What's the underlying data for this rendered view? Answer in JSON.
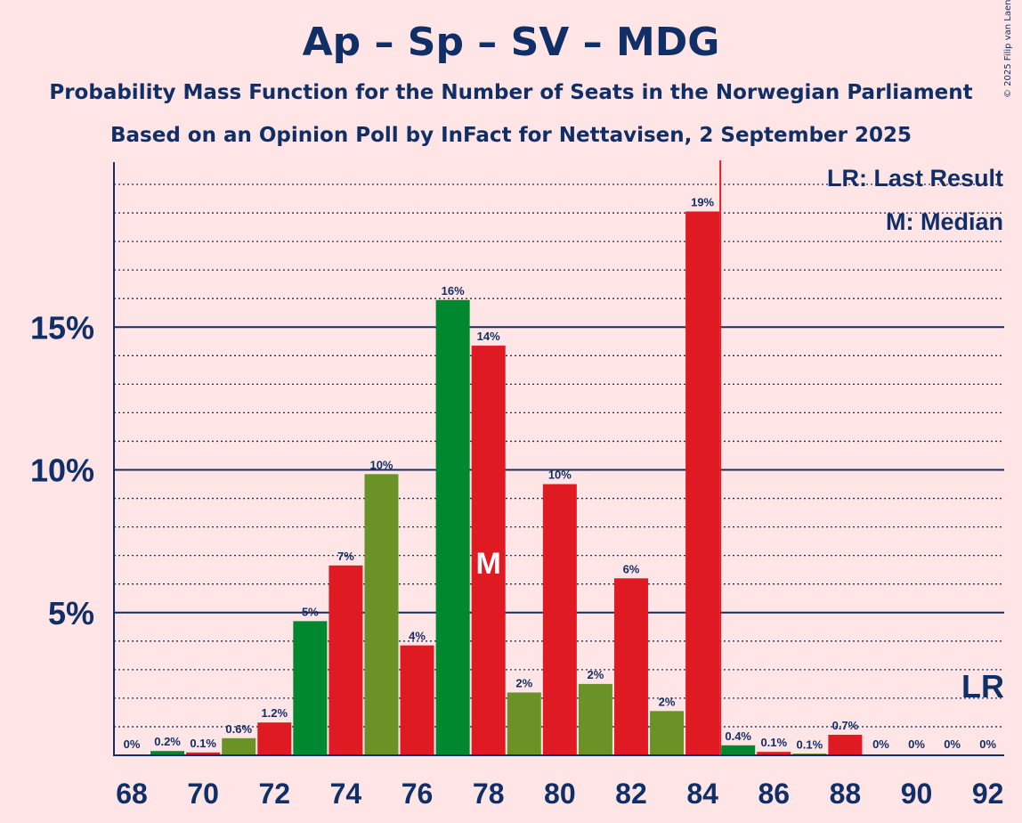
{
  "title": "Ap – Sp – SV – MDG",
  "subtitle1": "Probability Mass Function for the Number of Seats in the Norwegian Parliament",
  "subtitle2": "Based on an Opinion Poll by InFact for Nettavisen, 2 September 2025",
  "copyright": "© 2025 Filip van Laenen",
  "legend": {
    "last_result": "LR: Last Result",
    "median": "M: Median"
  },
  "colors": {
    "background": "#ffe5e5",
    "text": "#112f67",
    "green": "#00882e",
    "olive": "#6b9226",
    "red": "#e01a22"
  },
  "chart_data": {
    "type": "bar",
    "categories": [
      68,
      69,
      70,
      71,
      72,
      73,
      74,
      75,
      76,
      77,
      78,
      79,
      80,
      81,
      82,
      83,
      84,
      85,
      86,
      87,
      88,
      89,
      90,
      91,
      92
    ],
    "values": [
      0,
      0.15,
      0.1,
      0.6,
      1.15,
      4.7,
      6.65,
      9.85,
      3.85,
      15.95,
      14.35,
      2.2,
      9.5,
      2.5,
      6.2,
      1.55,
      19.05,
      0.35,
      0.12,
      0.05,
      0.72,
      0,
      0,
      0,
      0
    ],
    "labels": [
      "0%",
      "0.2%",
      "0.1%",
      "0.6%",
      "1.2%",
      "5%",
      "7%",
      "10%",
      "4%",
      "16%",
      "14%",
      "2%",
      "10%",
      "2%",
      "6%",
      "2%",
      "19%",
      "0.4%",
      "0.1%",
      "0.1%",
      "0.7%",
      "0%",
      "0%",
      "0%",
      "0%"
    ],
    "bar_colors": [
      "green",
      "green",
      "red",
      "olive",
      "red",
      "green",
      "red",
      "olive",
      "red",
      "green",
      "red",
      "olive",
      "red",
      "olive",
      "red",
      "olive",
      "red",
      "green",
      "red",
      "olive",
      "red",
      "green",
      "red",
      "olive",
      "red"
    ],
    "x_tick_labels": [
      "68",
      "70",
      "72",
      "74",
      "76",
      "78",
      "80",
      "82",
      "84",
      "86",
      "88",
      "90",
      "92"
    ],
    "y_ticks": [
      5,
      10,
      15
    ],
    "y_tick_labels": [
      "5%",
      "10%",
      "15%"
    ],
    "ylim": [
      0,
      20.8
    ],
    "median": 78,
    "median_marker": "M",
    "last_result": 84,
    "last_result_marker": "LR"
  }
}
